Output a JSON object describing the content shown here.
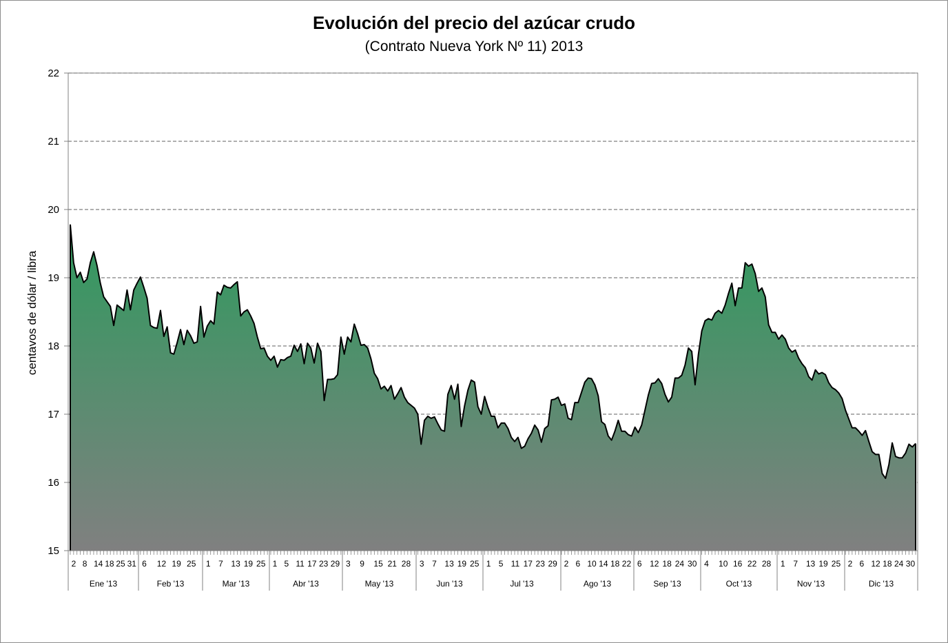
{
  "chart_data": {
    "type": "area",
    "title": "Evolución del precio del azúcar crudo",
    "subtitle": "(Contrato Nueva York Nº 11)   2013",
    "ylabel": "centavos de dólar / libra",
    "xlabel": "",
    "ylim": [
      15,
      22
    ],
    "yticks": [
      "15",
      "16",
      "17",
      "18",
      "19",
      "20",
      "21",
      "22"
    ],
    "grid": "horizontal dashed",
    "colors": {
      "area_top": "#2f9a5e",
      "area_bottom": "#808080",
      "line": "#000000",
      "grid": "#7f7f7f"
    },
    "months": [
      {
        "label": "Ene '13",
        "days": [
          "2",
          "8",
          "14",
          "18",
          "25",
          "31"
        ]
      },
      {
        "label": "Feb '13",
        "days": [
          "6",
          "12",
          "19",
          "25"
        ]
      },
      {
        "label": "Mar '13",
        "days": [
          "1",
          "7",
          "13",
          "19",
          "25"
        ]
      },
      {
        "label": "Abr '13",
        "days": [
          "1",
          "5",
          "11",
          "17",
          "23",
          "29"
        ]
      },
      {
        "label": "May '13",
        "days": [
          "3",
          "9",
          "15",
          "21",
          "28"
        ]
      },
      {
        "label": "Jun '13",
        "days": [
          "3",
          "7",
          "13",
          "19",
          "25"
        ]
      },
      {
        "label": "Jul '13",
        "days": [
          "1",
          "5",
          "11",
          "17",
          "23",
          "29"
        ]
      },
      {
        "label": "Ago '13",
        "days": [
          "2",
          "6",
          "10",
          "14",
          "18",
          "22"
        ]
      },
      {
        "label": "Sep '13",
        "days": [
          "6",
          "12",
          "18",
          "24",
          "30"
        ]
      },
      {
        "label": "Oct '13",
        "days": [
          "4",
          "10",
          "16",
          "22",
          "28"
        ]
      },
      {
        "label": "Nov '13",
        "days": [
          "1",
          "7",
          "13",
          "19",
          "25"
        ]
      },
      {
        "label": "Dic '13",
        "days": [
          "2",
          "6",
          "12",
          "18",
          "24",
          "30"
        ]
      }
    ],
    "series": [
      {
        "values": [
          19.78,
          19.22,
          19.0,
          19.08,
          18.93,
          18.98,
          19.22,
          19.38,
          19.18,
          18.92,
          18.72,
          18.65,
          18.58,
          18.3,
          18.6,
          18.56,
          18.52,
          18.82,
          18.53,
          18.82,
          18.92,
          19.01,
          18.86,
          18.7,
          18.3,
          18.27,
          18.26,
          18.52,
          18.14,
          18.28,
          17.9,
          17.88,
          18.05,
          18.24,
          18.02,
          18.23,
          18.15,
          18.04,
          18.06,
          18.58,
          18.13,
          18.29,
          18.37,
          18.32,
          18.79,
          18.75,
          18.89,
          18.86,
          18.85,
          18.9,
          18.94,
          18.44,
          18.5,
          18.53,
          18.44,
          18.33,
          18.13,
          17.96,
          17.97,
          17.85,
          17.79,
          17.85,
          17.69,
          17.8,
          17.79,
          17.83,
          17.85,
          18.01,
          17.92,
          18.03,
          17.74,
          18.04,
          17.97,
          17.75,
          18.04,
          17.92,
          17.2,
          17.51,
          17.51,
          17.52,
          17.58,
          18.13,
          17.88,
          18.13,
          18.06,
          18.32,
          18.18,
          18.01,
          18.02,
          17.97,
          17.81,
          17.6,
          17.52,
          17.37,
          17.41,
          17.34,
          17.42,
          17.22,
          17.3,
          17.39,
          17.25,
          17.17,
          17.13,
          17.09,
          17.0,
          16.56,
          16.91,
          16.97,
          16.94,
          16.96,
          16.86,
          16.77,
          16.75,
          17.29,
          17.42,
          17.22,
          17.44,
          16.82,
          17.12,
          17.35,
          17.5,
          17.47,
          17.11,
          17.0,
          17.26,
          17.1,
          16.97,
          16.97,
          16.8,
          16.87,
          16.87,
          16.79,
          16.66,
          16.6,
          16.66,
          16.5,
          16.53,
          16.64,
          16.72,
          16.84,
          16.77,
          16.59,
          16.79,
          16.83,
          17.21,
          17.22,
          17.25,
          17.13,
          17.15,
          16.94,
          16.92,
          17.17,
          17.17,
          17.32,
          17.47,
          17.53,
          17.52,
          17.43,
          17.27,
          16.89,
          16.85,
          16.68,
          16.62,
          16.75,
          16.91,
          16.75,
          16.75,
          16.7,
          16.68,
          16.81,
          16.73,
          16.84,
          17.06,
          17.28,
          17.45,
          17.46,
          17.52,
          17.45,
          17.29,
          17.18,
          17.25,
          17.53,
          17.53,
          17.57,
          17.72,
          17.97,
          17.92,
          17.43,
          17.88,
          18.22,
          18.37,
          18.4,
          18.38,
          18.48,
          18.52,
          18.48,
          18.6,
          18.77,
          18.92,
          18.59,
          18.85,
          18.85,
          19.22,
          19.17,
          19.2,
          19.06,
          18.8,
          18.85,
          18.72,
          18.31,
          18.2,
          18.2,
          18.1,
          18.16,
          18.1,
          17.97,
          17.91,
          17.94,
          17.82,
          17.74,
          17.68,
          17.55,
          17.5,
          17.65,
          17.59,
          17.61,
          17.58,
          17.46,
          17.39,
          17.36,
          17.31,
          17.23,
          17.06,
          16.93,
          16.8,
          16.8,
          16.75,
          16.69,
          16.76,
          16.6,
          16.45,
          16.41,
          16.41,
          16.13,
          16.06,
          16.26,
          16.58,
          16.38,
          16.36,
          16.36,
          16.43,
          16.56,
          16.52,
          16.57
        ]
      }
    ]
  }
}
